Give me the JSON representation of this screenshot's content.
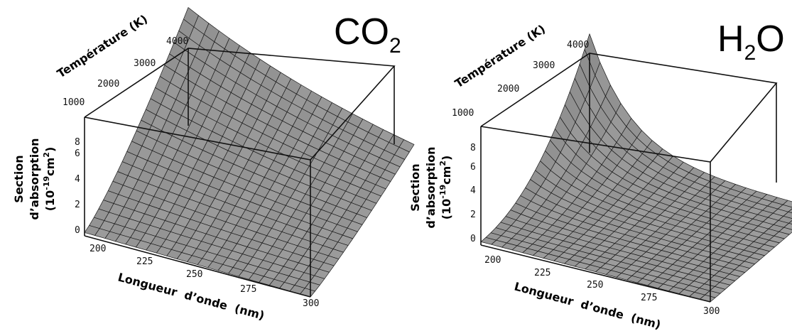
{
  "chart_data": [
    {
      "type": "surface",
      "title": "CO",
      "title_subscript": "2",
      "xlabel": "Longueur  d’onde  (nm)",
      "ylabel": "Température (K)",
      "zlabel": [
        "Section",
        "d’absorption",
        "(10",
        "-19",
        "cm",
        "2",
        ")"
      ],
      "x_ticks": [
        "200",
        "225",
        "250",
        "275",
        "300"
      ],
      "y_ticks": [
        "1000",
        "2000",
        "3000",
        "4000"
      ],
      "z_ticks": [
        "0",
        "2",
        "4",
        "6",
        "8"
      ],
      "xlim": [
        200,
        300
      ],
      "ylim": [
        1000,
        4000
      ],
      "zlim": [
        0,
        9
      ],
      "surface_peak": {
        "x": 200,
        "y": 4000,
        "z": 8.8
      },
      "surface_decay_nm": 100,
      "surface_T_power": 1.3,
      "surface_color": "#8c8c8c"
    },
    {
      "type": "surface",
      "title": "H",
      "title_subscript": "2",
      "title_after": "O",
      "xlabel": "Longueur  d’onde  (nm)",
      "ylabel": "Température (K)",
      "zlabel": [
        "Section",
        "d’absorption",
        "(10",
        "-19",
        "cm",
        "2",
        ")"
      ],
      "x_ticks": [
        "200",
        "225",
        "250",
        "275",
        "300"
      ],
      "y_ticks": [
        "1000",
        "2000",
        "3000",
        "4000"
      ],
      "z_ticks": [
        "0",
        "2",
        "4",
        "6",
        "8"
      ],
      "xlim": [
        200,
        300
      ],
      "ylim": [
        1000,
        4000
      ],
      "zlim": [
        0,
        9
      ],
      "surface_peak": {
        "x": 200,
        "y": 4000,
        "z": 8.8
      },
      "surface_decay_nm": 18,
      "surface_T_power": 2.2,
      "surface_color": "#8c8c8c"
    }
  ]
}
